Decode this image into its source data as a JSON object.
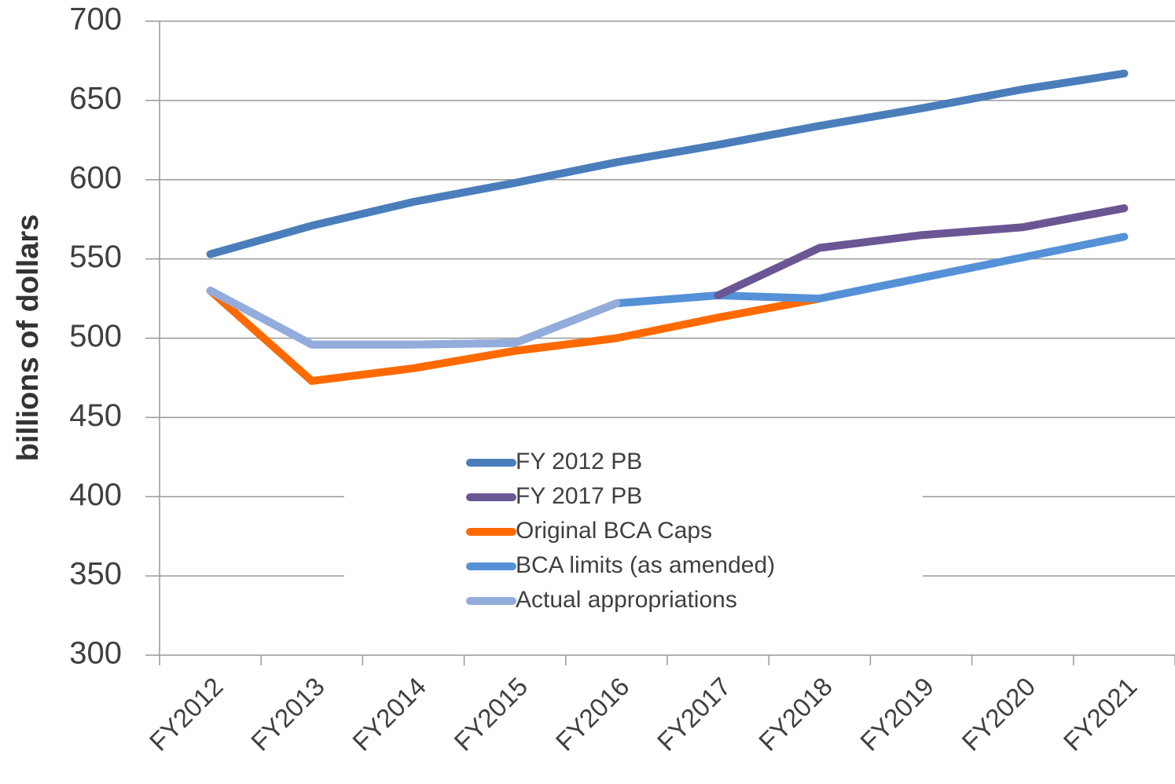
{
  "chart_data": {
    "type": "line",
    "y_label": "billions of dollars",
    "categories": [
      "FY2012",
      "FY2013",
      "FY2014",
      "FY2015",
      "FY2016",
      "FY2017",
      "FY2018",
      "FY2019",
      "FY2020",
      "FY2021"
    ],
    "series": [
      {
        "name": "FY 2012 PB",
        "color": "#4a7ebb",
        "values": [
          553,
          571,
          586,
          598,
          611,
          622,
          634,
          645,
          657,
          667
        ]
      },
      {
        "name": "FY 2017 PB",
        "color": "#6b5694",
        "values": [
          null,
          null,
          null,
          null,
          null,
          527,
          557,
          565,
          570,
          582
        ]
      },
      {
        "name": "Original BCA Caps",
        "color": "#ff6a00",
        "values": [
          530,
          473,
          481,
          492,
          500,
          513,
          525,
          null,
          null,
          null
        ]
      },
      {
        "name": "BCA limits (as amended)",
        "color": "#5591d7",
        "values": [
          530,
          496,
          496,
          497,
          522,
          527,
          525,
          538,
          551,
          564
        ]
      },
      {
        "name": "Actual appropriations",
        "color": "#93acdc",
        "values": [
          530,
          496,
          496,
          497,
          522,
          null,
          null,
          null,
          null,
          null
        ]
      }
    ],
    "ylim": [
      300,
      700
    ],
    "yticks": [
      300,
      350,
      400,
      450,
      500,
      550,
      600,
      650,
      700
    ],
    "grid": true,
    "legend": "lower center"
  }
}
